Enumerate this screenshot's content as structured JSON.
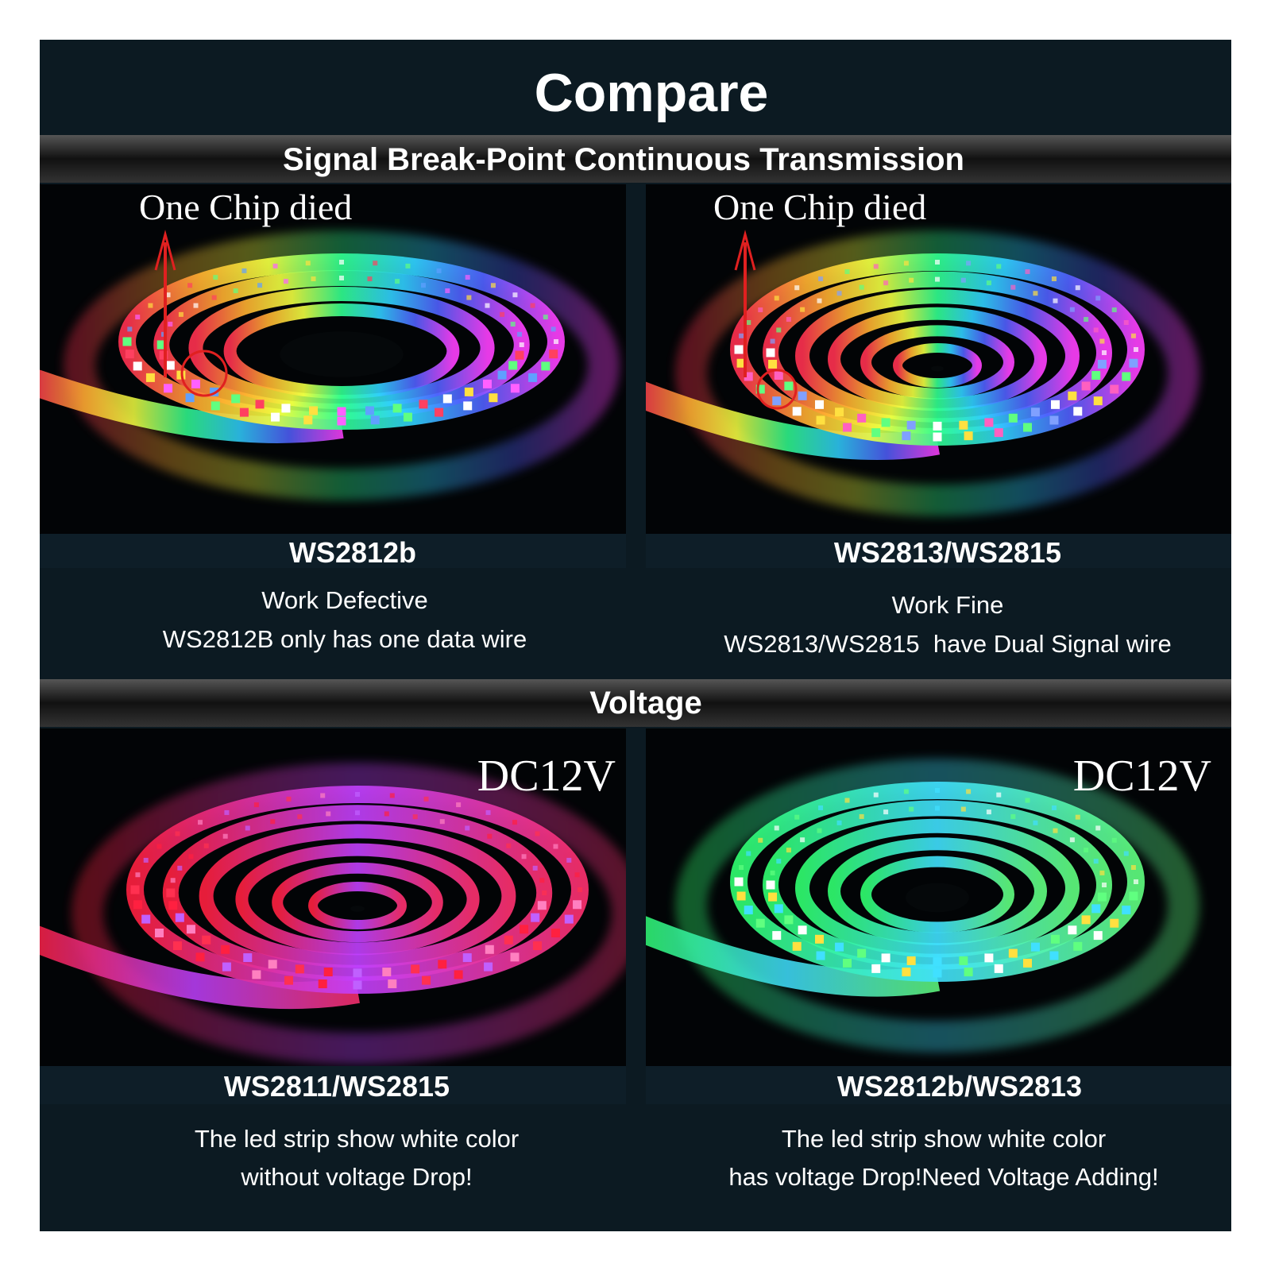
{
  "header": {
    "title": "Compare"
  },
  "sections": [
    {
      "heading": "Signal Break-Point Continuous Transmission",
      "panels": [
        {
          "annotation": "One Chip died",
          "model": "WS2812b",
          "description": [
            "Work Defective",
            "WS2812B only has one data wire"
          ]
        },
        {
          "annotation": "One Chip died",
          "model": "WS2813/WS2815",
          "description": [
            "Work Fine",
            "WS2813/WS2815  have Dual Signal wire"
          ]
        }
      ]
    },
    {
      "heading": "Voltage",
      "panels": [
        {
          "annotation": "DC12V",
          "model": "WS2811/WS2815",
          "description": [
            "The led strip show white color",
            "without voltage Drop!"
          ]
        },
        {
          "annotation": "DC12V",
          "model": "WS2812b/WS2813",
          "description": [
            "The led strip show white color",
            "has voltage Drop!Need Voltage Adding!"
          ]
        }
      ]
    }
  ]
}
